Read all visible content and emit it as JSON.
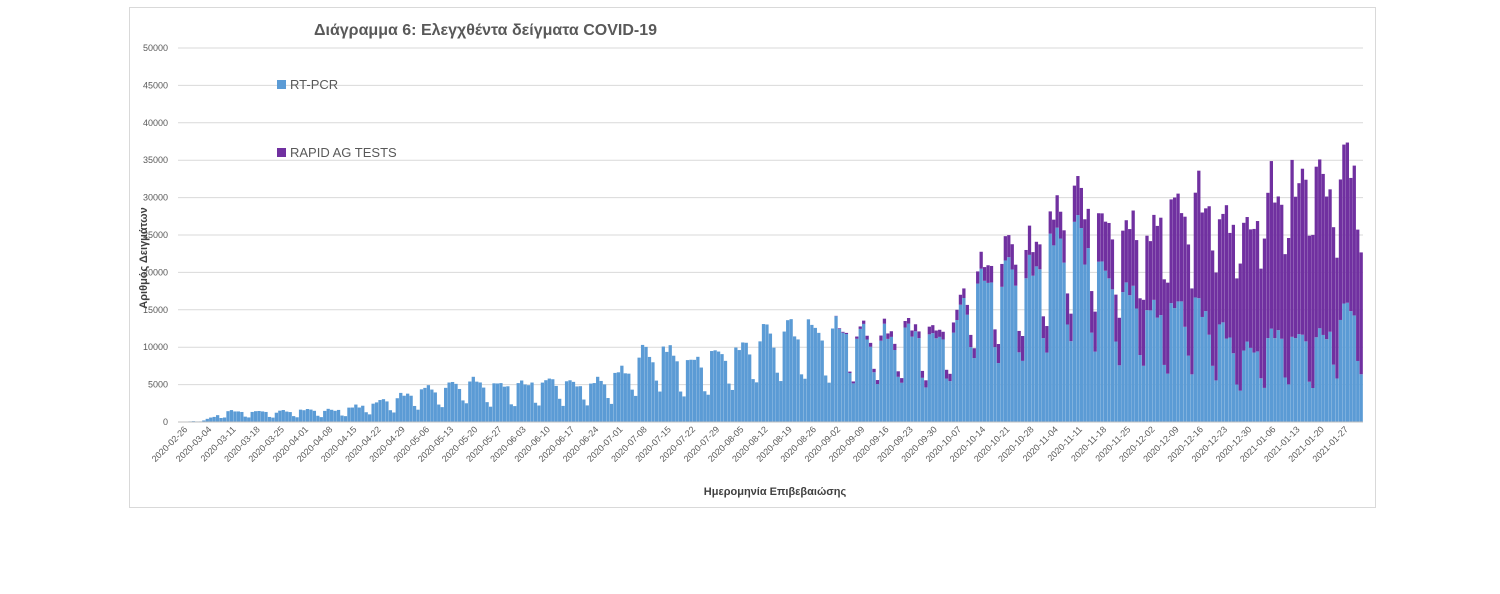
{
  "chart_data": {
    "type": "bar",
    "stacked": true,
    "title": "Διάγραμμα 6: Ελεγχθέντα δείγματα COVID-19",
    "xlabel": "Ημερομηνία Επιβεβαιώσης",
    "ylabel": "Αριθμός Δειγμάτων",
    "ylim": [
      0,
      50000
    ],
    "yticks": [
      0,
      5000,
      10000,
      15000,
      20000,
      25000,
      30000,
      35000,
      40000,
      45000,
      50000
    ],
    "grid": true,
    "legend_position": "top-left",
    "x_tick_labels": [
      "2020-02-26",
      "2020-03-04",
      "2020-03-11",
      "2020-03-18",
      "2020-03-25",
      "2020-04-01",
      "2020-04-08",
      "2020-04-15",
      "2020-04-22",
      "2020-04-29",
      "2020-05-06",
      "2020-05-13",
      "2020-05-20",
      "2020-05-27",
      "2020-06-03",
      "2020-06-10",
      "2020-06-17",
      "2020-06-24",
      "2020-07-01",
      "2020-07-08",
      "2020-07-15",
      "2020-07-22",
      "2020-07-29",
      "2020-08-05",
      "2020-08-12",
      "2020-08-19",
      "2020-08-26",
      "2020-09-02",
      "2020-09-09",
      "2020-09-16",
      "2020-09-23",
      "2020-09-30",
      "2020-10-07",
      "2020-10-14",
      "2020-10-21",
      "2020-10-28",
      "2020-11-04",
      "2020-11-11",
      "2020-11-18",
      "2020-11-25",
      "2020-12-02",
      "2020-12-09",
      "2020-12-16",
      "2020-12-23",
      "2020-12-30",
      "2021-01-06",
      "2021-01-13",
      "2021-01-20",
      "2021-01-27"
    ],
    "weekly_anchor_values": {
      "rt_pcr": [
        0,
        200,
        1400,
        1400,
        1300,
        1500,
        1500,
        1800,
        2500,
        3200,
        4200,
        4800,
        5200,
        4500,
        4800,
        5300,
        5200,
        5000,
        5800,
        8500,
        9500,
        7500,
        8500,
        9500,
        11000,
        12000,
        13000,
        12000,
        11500,
        11500,
        11000,
        11000,
        12000,
        19500,
        19000,
        18000,
        22000,
        24000,
        21000,
        18000,
        15000,
        14000,
        15000,
        12000,
        9000,
        11000,
        11000,
        10500,
        14000
      ],
      "rapid_ag": [
        0,
        0,
        0,
        0,
        0,
        0,
        0,
        0,
        0,
        0,
        0,
        0,
        0,
        0,
        0,
        0,
        0,
        0,
        0,
        0,
        0,
        0,
        0,
        0,
        0,
        0,
        0,
        0,
        300,
        700,
        800,
        1000,
        1200,
        1800,
        3000,
        3500,
        3500,
        4500,
        7000,
        8000,
        10000,
        13000,
        15000,
        16000,
        17000,
        20000,
        21000,
        20000,
        20000
      ]
    },
    "series": [
      {
        "name": "RT-PCR",
        "color": "#5b9bd5"
      },
      {
        "name": "RAPID AG TESTS",
        "color": "#7030a0"
      }
    ]
  }
}
